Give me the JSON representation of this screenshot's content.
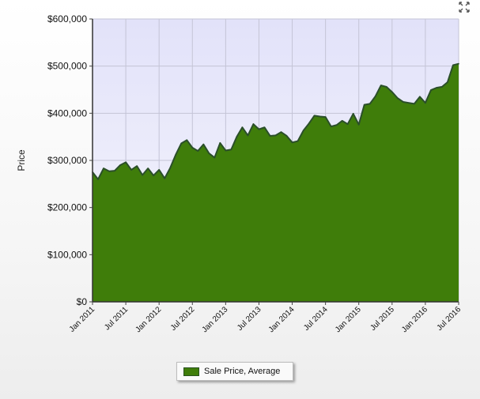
{
  "chart_data": {
    "type": "area",
    "title": "",
    "xlabel": "",
    "ylabel": "Price",
    "ylim": [
      0,
      600000
    ],
    "yticks": [
      "$0",
      "$100,000",
      "$200,000",
      "$300,000",
      "$400,000",
      "$500,000",
      "$600,000"
    ],
    "xticks": [
      "Jan 2011",
      "Jul 2011",
      "Jan 2012",
      "Jul 2012",
      "Jan 2013",
      "Jul 2013",
      "Jan 2014",
      "Jul 2014",
      "Jan 2015",
      "Jul 2015",
      "Jan 2016",
      "Jul 2016"
    ],
    "grid": true,
    "legend_position": "bottom-center",
    "fill_color": "#3f7d0a",
    "line_color": "#2b4f2a",
    "plot_bg_top": "#e2e2f9",
    "plot_bg_bottom": "#f6f6fd",
    "series": [
      {
        "name": "Sale Price, Average",
        "values": [
          275000,
          260000,
          283000,
          277000,
          278000,
          290000,
          296000,
          280000,
          288000,
          269000,
          283000,
          268000,
          280000,
          262000,
          284000,
          312000,
          336000,
          343000,
          327000,
          320000,
          334000,
          315000,
          306000,
          337000,
          321000,
          323000,
          350000,
          370000,
          353000,
          377000,
          366000,
          370000,
          352000,
          353000,
          360000,
          352000,
          338000,
          341000,
          363000,
          378000,
          395000,
          393000,
          392000,
          372000,
          375000,
          384000,
          377000,
          399000,
          376000,
          418000,
          420000,
          436000,
          459000,
          456000,
          445000,
          432000,
          424000,
          422000,
          420000,
          435000,
          422000,
          449000,
          454000,
          456000,
          466000,
          502000,
          505000
        ]
      }
    ]
  },
  "icons": {
    "expand": "expand-icon"
  }
}
